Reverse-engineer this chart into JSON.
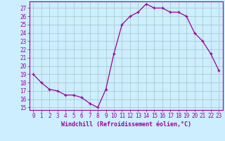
{
  "x": [
    0,
    1,
    2,
    3,
    4,
    5,
    6,
    7,
    8,
    9,
    10,
    11,
    12,
    13,
    14,
    15,
    16,
    17,
    18,
    19,
    20,
    21,
    22,
    23
  ],
  "y": [
    19.0,
    18.0,
    17.2,
    17.0,
    16.5,
    16.5,
    16.2,
    15.5,
    15.0,
    17.2,
    21.5,
    25.0,
    26.0,
    26.5,
    27.5,
    27.0,
    27.0,
    26.5,
    26.5,
    26.0,
    24.0,
    23.0,
    21.5,
    19.5
  ],
  "line_color": "#990099",
  "marker": "+",
  "marker_size": 3,
  "bg_color": "#cceeff",
  "grid_color": "#aacccc",
  "xlabel": "Windchill (Refroidissement éolien,°C)",
  "xlabel_fontsize": 6.0,
  "tick_fontsize": 5.5,
  "yticks": [
    15,
    16,
    17,
    18,
    19,
    20,
    21,
    22,
    23,
    24,
    25,
    26,
    27
  ],
  "xticks": [
    0,
    1,
    2,
    3,
    4,
    5,
    6,
    7,
    8,
    9,
    10,
    11,
    12,
    13,
    14,
    15,
    16,
    17,
    18,
    19,
    20,
    21,
    22,
    23
  ],
  "xtick_labels": [
    "0",
    "1",
    "2",
    "3",
    "4",
    "5",
    "6",
    "7",
    "8",
    "9",
    "10",
    "11",
    "12",
    "13",
    "14",
    "15",
    "16",
    "17",
    "18",
    "19",
    "20",
    "21",
    "22",
    "23"
  ]
}
